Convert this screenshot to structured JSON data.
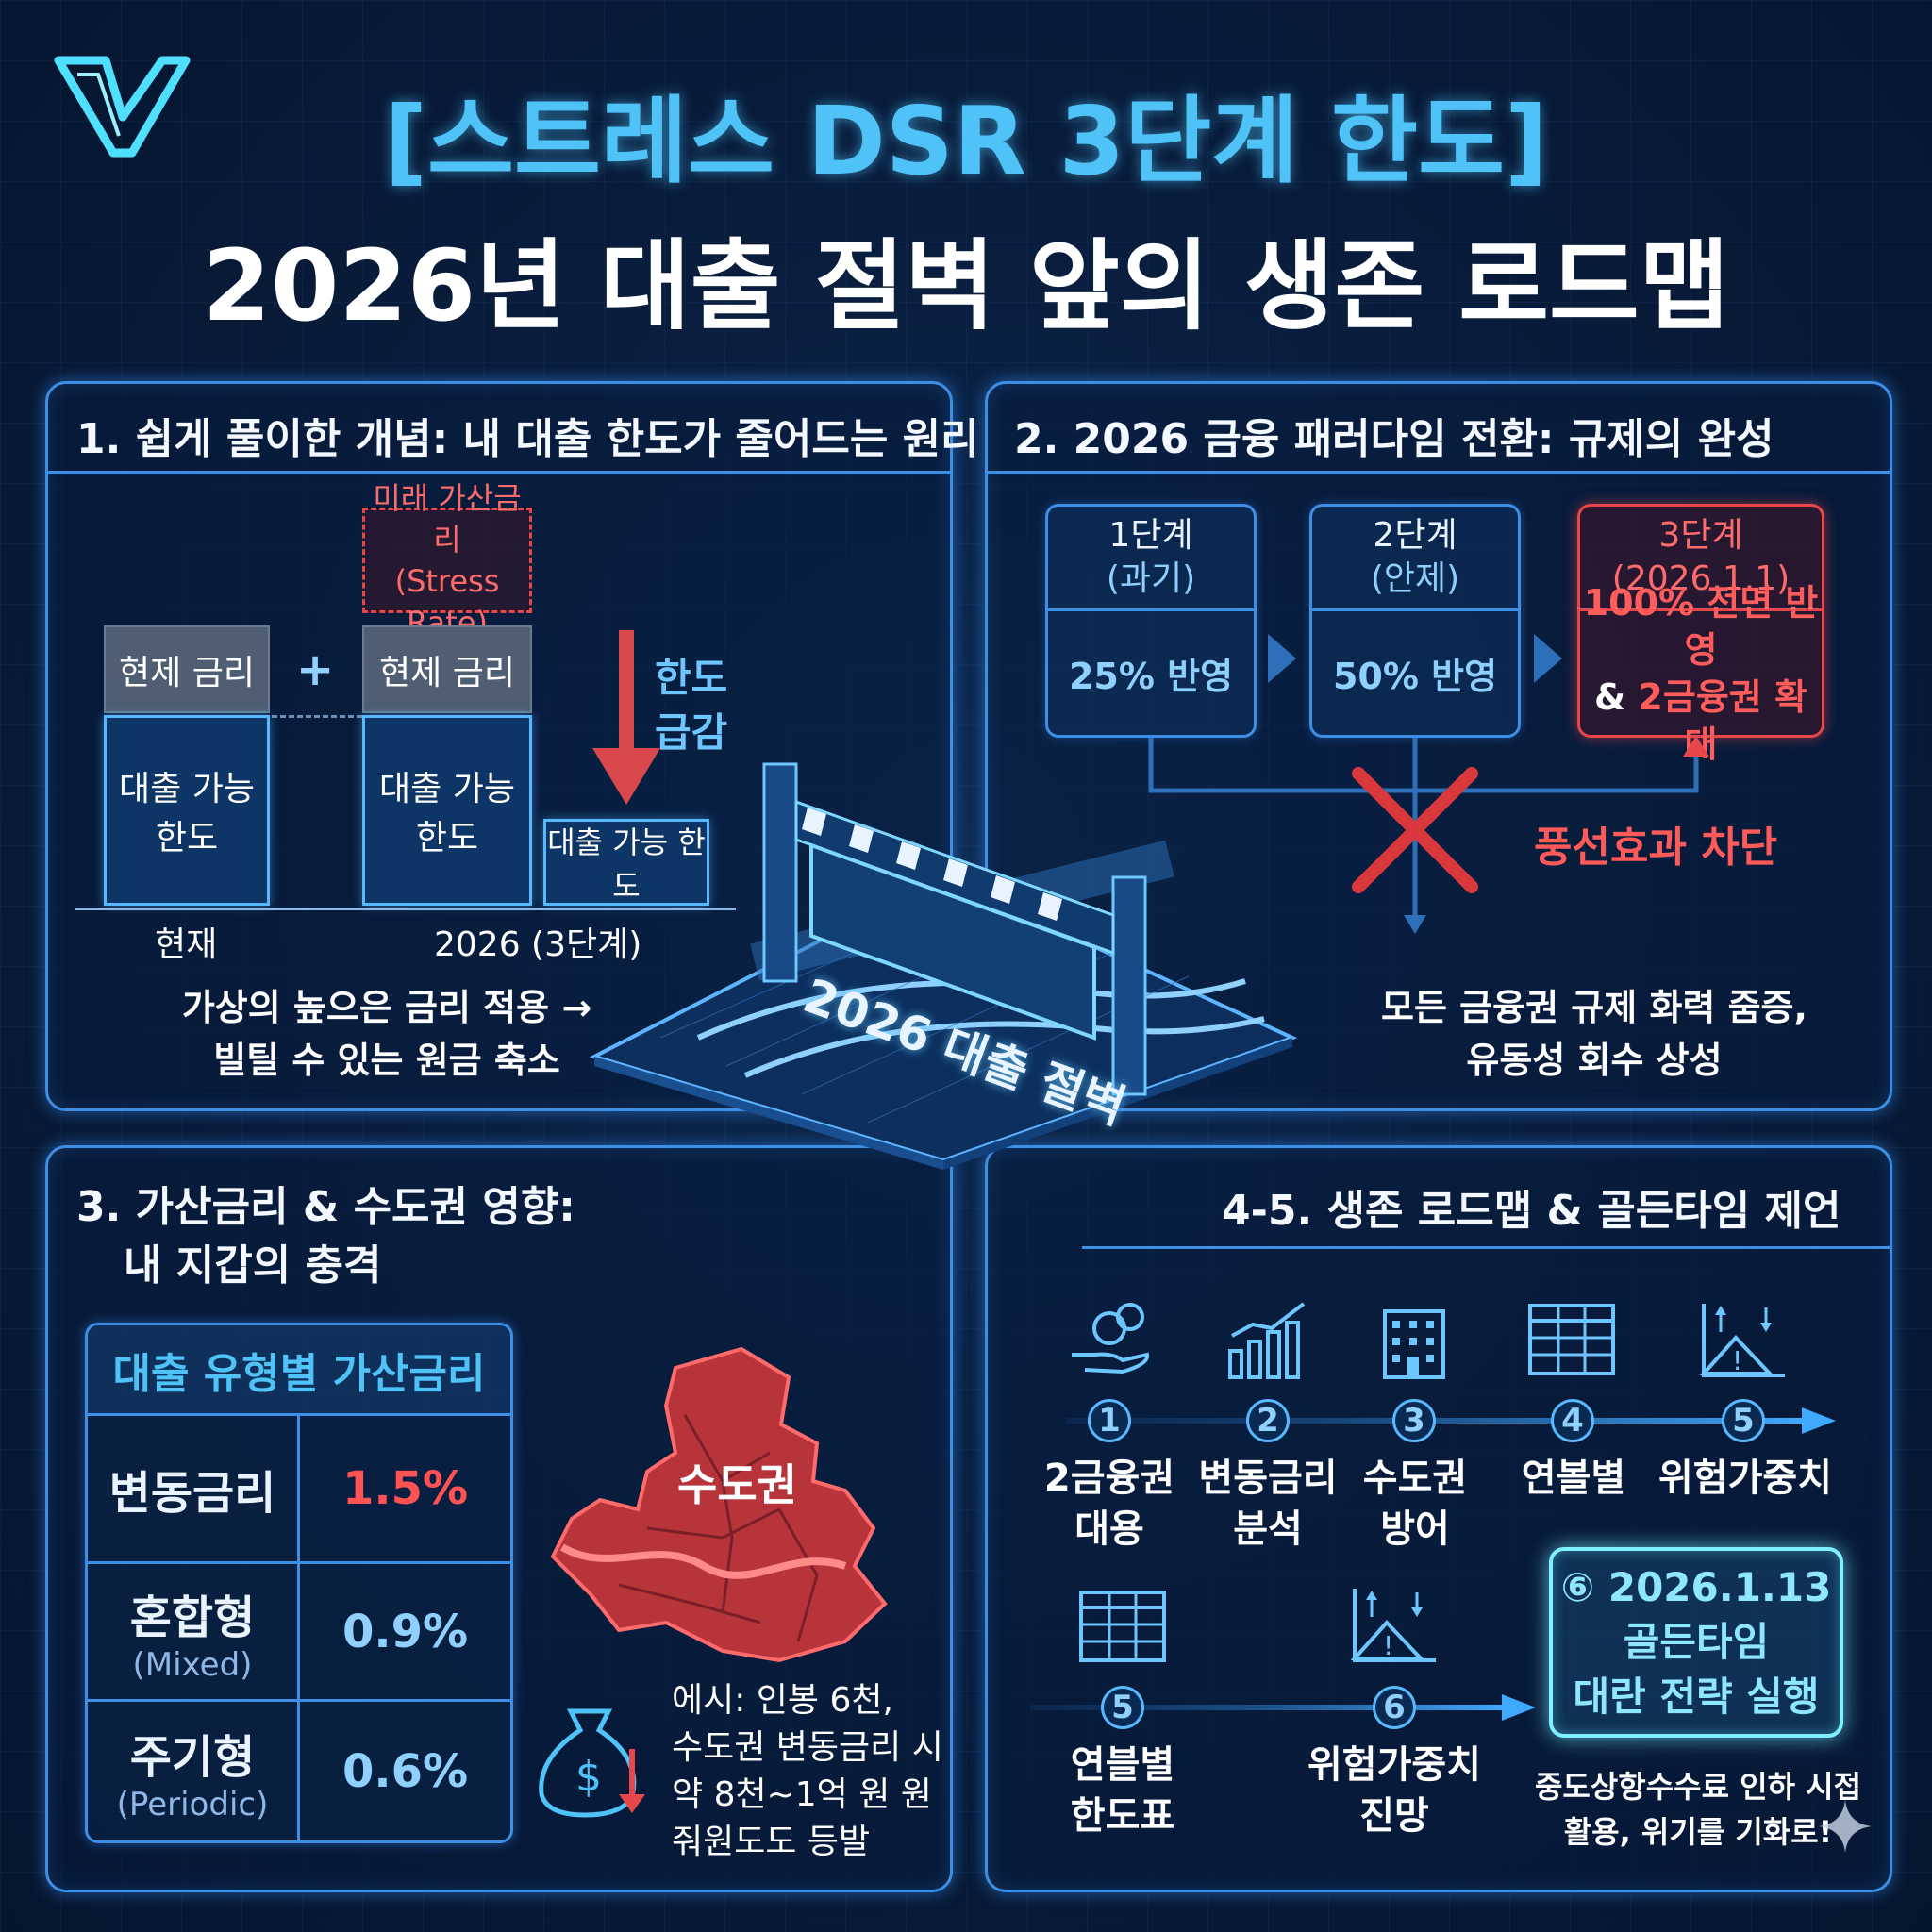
{
  "title_line1": "[스트레스 DSR 3단계 한도]",
  "title_line2": "2026년 대출 절벽 앞의 생존 로드맵",
  "center_sign": "2026 대출 절벽",
  "panel1": {
    "title": "1. 쉽게 풀이한 개념: 내 대출 한도가 줄어드는 원리",
    "stress_rate_line1": "미래 가산금리",
    "stress_rate_line2": "(Stress Rate)",
    "current_rate": "현제 금리",
    "plus": "+",
    "loan_limit": "대출 가능 한도",
    "limit_drop_line1": "한도",
    "limit_drop_line2": "급감",
    "x_now": "현재",
    "x_2026": "2026 (3단계)",
    "desc_line1": "가상의 높으은 금리 적용 →",
    "desc_line2": "빌틸 수 있는 원금 축소"
  },
  "panel2": {
    "title": "2. 2026 금융 패러다임 전환: 규제의 완성",
    "stages": [
      {
        "name": "1단계",
        "period": "(과기)",
        "value": "25% 반영"
      },
      {
        "name": "2단계",
        "period": "(안제)",
        "value": "50% 반영"
      },
      {
        "name": "3단계",
        "period": "(2026.1.1)",
        "value_line1": "100% 전면 반영",
        "value_line2_prefix": "& ",
        "value_line2": "2금융권 확대"
      }
    ],
    "balloon_block": "풍선효과 차단",
    "desc_line1": "모든 금융권 규제 화력 줌증,",
    "desc_line2": "유동성 회수 상성"
  },
  "panel3": {
    "title_line1": "3. 가산금리 & 수도권 영향:",
    "title_line2": "내 지갑의 충격",
    "table_header": "대출 유형별 가산금리",
    "rows": [
      {
        "type": "변동금리",
        "sub": "",
        "rate": "1.5%"
      },
      {
        "type": "혼합형",
        "sub": "(Mixed)",
        "rate": "0.9%"
      },
      {
        "type": "주기형",
        "sub": "(Periodic)",
        "rate": "0.6%"
      }
    ],
    "map_label": "수도권",
    "example_line1": "에시: 인봉 6천,",
    "example_line2": "수도권 변동금리 시",
    "example_line3": "약 8천~1억 원 원",
    "example_line4": "줘원도도 등발"
  },
  "panel4": {
    "title": "4-5. 생존 로드맵 & 골든타임 제언",
    "steps_top": [
      {
        "num": "1",
        "line1": "2금융권",
        "line2": "대용",
        "icon": "money-hand-icon"
      },
      {
        "num": "2",
        "line1": "변동금리",
        "line2": "분석",
        "icon": "growth-chart-icon"
      },
      {
        "num": "3",
        "line1": "수도권",
        "line2": "방어",
        "icon": "building-icon"
      },
      {
        "num": "4",
        "line1": "연볼별",
        "line2": "",
        "icon": "table-icon"
      },
      {
        "num": "5",
        "line1": "위험가중치",
        "line2": "",
        "icon": "risk-chart-icon"
      }
    ],
    "steps_bottom": [
      {
        "num": "5",
        "line1": "연블별",
        "line2": "한도표",
        "icon": "table-icon"
      },
      {
        "num": "6",
        "line1": "위험가중치",
        "line2": "진망",
        "icon": "risk-chart-icon"
      }
    ],
    "golden_line1": "⑥ 2026.1.13",
    "golden_line2": "골든타임",
    "golden_line3": "대란 전략 실행",
    "footer_line1": "중도상항수수료 인하 시접",
    "footer_line2": "활용, 위기를 기화로!"
  },
  "colors": {
    "accent": "#4fc3f7",
    "panel_border": "#3d8fe6",
    "danger": "#e8474a",
    "background": "#091d3d"
  }
}
